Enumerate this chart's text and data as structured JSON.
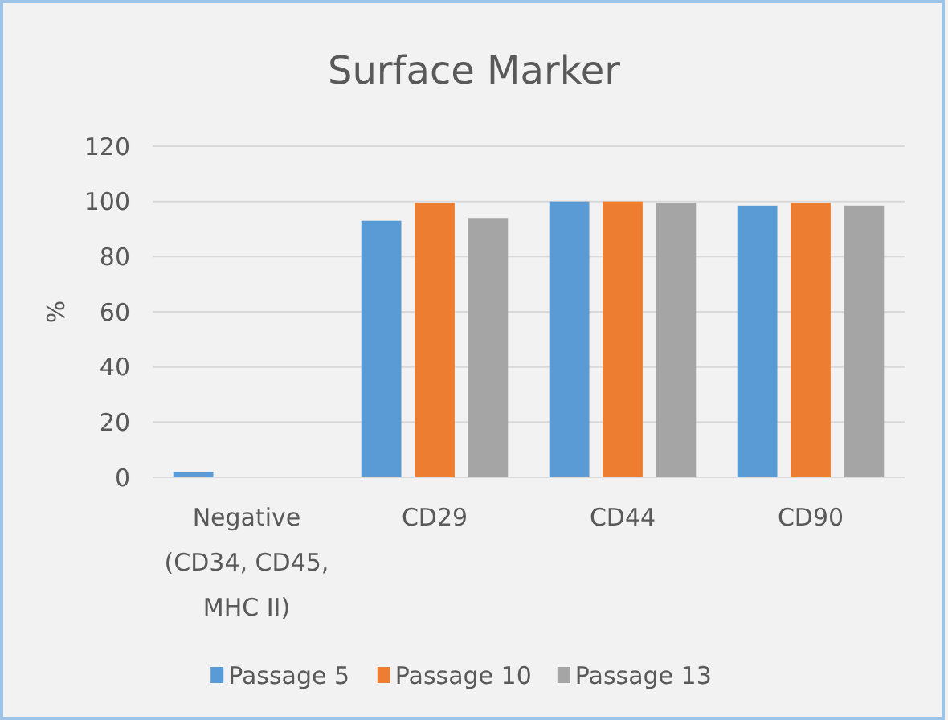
{
  "chart_data": {
    "type": "bar",
    "title": "Surface Marker",
    "ylabel": "%",
    "categories": [
      "Negative (CD34, CD45, MHC II)",
      "CD29",
      "CD44",
      "CD90"
    ],
    "series": [
      {
        "name": "Passage 5",
        "color": "#5b9bd5",
        "values": [
          2,
          93,
          100,
          98.5
        ]
      },
      {
        "name": "Passage 10",
        "color": "#ed7d31",
        "values": [
          0,
          99.5,
          100,
          99.5
        ]
      },
      {
        "name": "Passage 13",
        "color": "#a5a5a5",
        "values": [
          0,
          94,
          99.5,
          98.5
        ]
      }
    ],
    "ylim": [
      0,
      120
    ],
    "yticks": [
      0,
      20,
      40,
      60,
      80,
      100,
      120
    ],
    "grid": "y",
    "legend": "bottom"
  }
}
